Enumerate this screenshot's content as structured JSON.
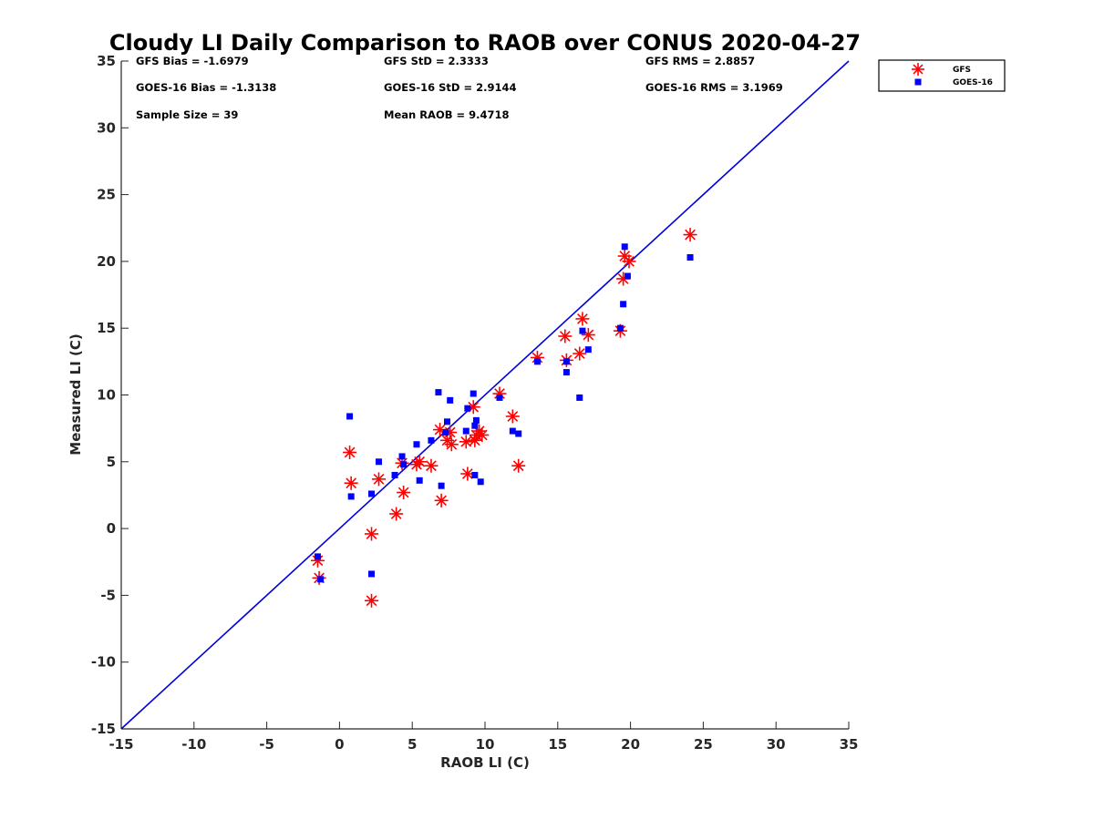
{
  "chart_data": {
    "type": "scatter",
    "title": "Cloudy LI Daily Comparison to RAOB over CONUS 2020-04-27",
    "xlabel": "RAOB LI (C)",
    "ylabel": "Measured LI (C)",
    "xlim": [
      -15,
      35
    ],
    "ylim": [
      -15,
      35
    ],
    "x_ticks": [
      -15,
      -10,
      -5,
      0,
      5,
      10,
      15,
      20,
      25,
      30,
      35
    ],
    "y_ticks": [
      -15,
      -10,
      -5,
      0,
      5,
      10,
      15,
      20,
      25,
      30,
      35
    ],
    "grid": false,
    "legend_position": "top-right outside",
    "reference_line": {
      "from": [
        -15,
        -15
      ],
      "to": [
        35,
        35
      ],
      "color": "#0000dd"
    },
    "stats": [
      {
        "label": "GFS Bias",
        "value": "-1.6979"
      },
      {
        "label": "GFS StD",
        "value": "2.3333"
      },
      {
        "label": "GFS RMS",
        "value": "2.8857"
      },
      {
        "label": "GOES-16 Bias",
        "value": "-1.3138"
      },
      {
        "label": "GOES-16 StD",
        "value": "2.9144"
      },
      {
        "label": "GOES-16 RMS",
        "value": "3.1969"
      },
      {
        "label": "Sample Size",
        "value": "39"
      },
      {
        "label": "Mean RAOB",
        "value": "9.4718"
      }
    ],
    "series": [
      {
        "name": "GFS",
        "marker": "asterisk",
        "color": "#ff0000",
        "points": [
          [
            -1.5,
            -2.4
          ],
          [
            -1.4,
            -3.7
          ],
          [
            2.2,
            -0.4
          ],
          [
            2.2,
            -5.4
          ],
          [
            0.7,
            5.7
          ],
          [
            0.8,
            3.4
          ],
          [
            2.7,
            3.7
          ],
          [
            3.9,
            1.1
          ],
          [
            4.4,
            2.7
          ],
          [
            4.3,
            4.9
          ],
          [
            5.3,
            4.8
          ],
          [
            5.5,
            5.0
          ],
          [
            6.3,
            4.7
          ],
          [
            6.9,
            7.4
          ],
          [
            7.0,
            2.1
          ],
          [
            7.4,
            6.6
          ],
          [
            7.6,
            7.2
          ],
          [
            7.7,
            6.3
          ],
          [
            8.7,
            6.5
          ],
          [
            8.8,
            4.1
          ],
          [
            9.2,
            9.1
          ],
          [
            9.3,
            6.6
          ],
          [
            9.4,
            7.0
          ],
          [
            9.6,
            7.3
          ],
          [
            9.8,
            7.0
          ],
          [
            11.0,
            10.1
          ],
          [
            11.9,
            8.4
          ],
          [
            12.3,
            4.7
          ],
          [
            13.6,
            12.8
          ],
          [
            15.5,
            14.4
          ],
          [
            15.6,
            12.6
          ],
          [
            16.5,
            13.1
          ],
          [
            16.7,
            15.7
          ],
          [
            17.1,
            14.5
          ],
          [
            19.3,
            14.8
          ],
          [
            19.5,
            18.7
          ],
          [
            19.6,
            20.4
          ],
          [
            19.9,
            20.0
          ],
          [
            24.1,
            22.0
          ]
        ]
      },
      {
        "name": "GOES-16",
        "marker": "square",
        "color": "#0000ff",
        "points": [
          [
            -1.5,
            -2.1
          ],
          [
            -1.3,
            -3.8
          ],
          [
            0.7,
            8.4
          ],
          [
            0.8,
            2.4
          ],
          [
            2.2,
            2.6
          ],
          [
            2.2,
            -3.4
          ],
          [
            2.7,
            5.0
          ],
          [
            3.8,
            4.0
          ],
          [
            4.3,
            5.4
          ],
          [
            4.4,
            4.8
          ],
          [
            5.3,
            6.3
          ],
          [
            5.5,
            3.6
          ],
          [
            6.3,
            6.6
          ],
          [
            6.8,
            10.2
          ],
          [
            7.0,
            3.2
          ],
          [
            7.3,
            7.2
          ],
          [
            7.4,
            8.0
          ],
          [
            7.6,
            9.6
          ],
          [
            8.7,
            7.3
          ],
          [
            8.8,
            9.0
          ],
          [
            9.2,
            10.1
          ],
          [
            9.3,
            4.0
          ],
          [
            9.3,
            7.7
          ],
          [
            9.4,
            8.1
          ],
          [
            9.7,
            3.5
          ],
          [
            11.0,
            9.8
          ],
          [
            11.9,
            7.3
          ],
          [
            12.3,
            7.1
          ],
          [
            13.6,
            12.5
          ],
          [
            15.6,
            11.7
          ],
          [
            15.6,
            12.5
          ],
          [
            16.5,
            9.8
          ],
          [
            16.7,
            14.8
          ],
          [
            17.1,
            13.4
          ],
          [
            19.3,
            15.0
          ],
          [
            19.5,
            16.8
          ],
          [
            19.6,
            21.1
          ],
          [
            19.8,
            18.9
          ],
          [
            24.1,
            20.3
          ]
        ]
      }
    ]
  }
}
